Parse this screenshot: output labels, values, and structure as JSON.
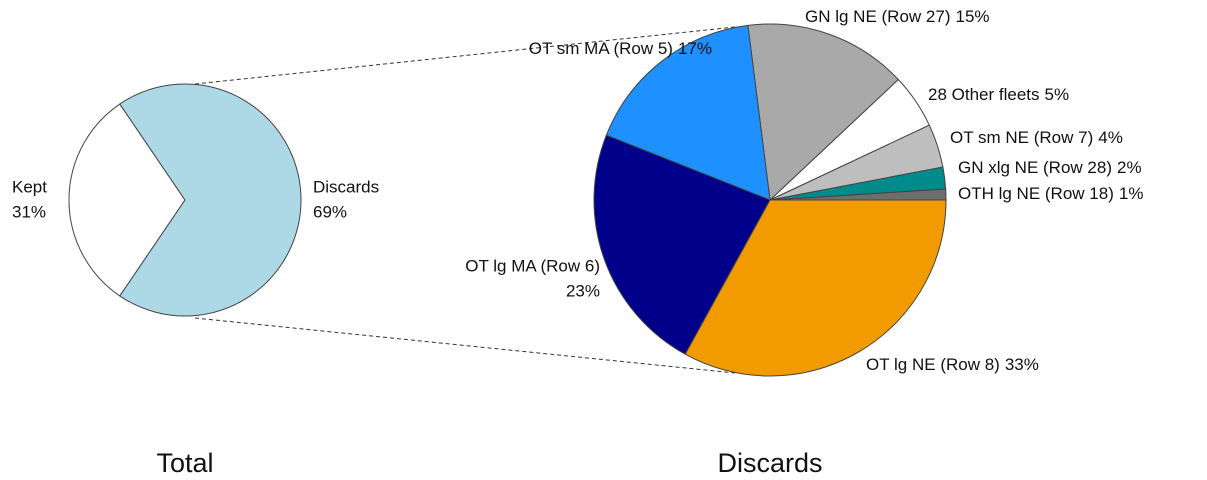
{
  "chart_data": [
    {
      "type": "pie",
      "title": "Total",
      "categories": [
        "Kept",
        "Discards"
      ],
      "values": [
        31,
        69
      ],
      "value_labels": [
        "31%",
        "69%"
      ],
      "colors": [
        "#ffffff",
        "#add8e6"
      ]
    },
    {
      "type": "pie",
      "title": "Discards",
      "categories": [
        "OTH lg NE (Row 18)",
        "GN xlg NE (Row 28)",
        "OT sm NE (Row 7)",
        "28 Other fleets",
        "GN lg NE (Row 27)",
        "OT sm MA (Row 5)",
        "OT lg MA (Row 6)",
        "OT lg NE (Row 8)"
      ],
      "values": [
        1,
        2,
        4,
        5,
        15,
        17,
        23,
        33
      ],
      "value_labels": [
        "1%",
        "2%",
        "4%",
        "5%",
        "15%",
        "17%",
        "23%",
        "33%"
      ],
      "colors": [
        "#6e6e6e",
        "#008b8b",
        "#bebebe",
        "#ffffff",
        "#a9a9a9",
        "#1e90ff",
        "#00008b",
        "#f29b00"
      ]
    }
  ]
}
